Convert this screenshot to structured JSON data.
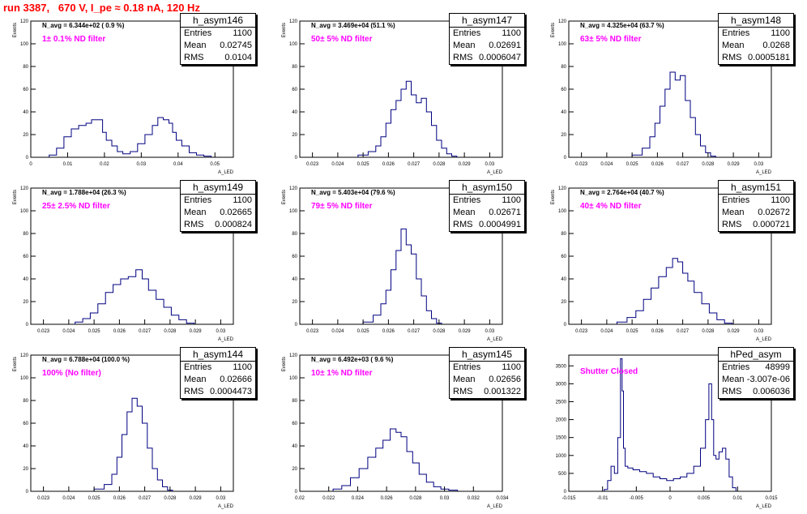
{
  "page_title": "run 3387,   670 V, I_pe ≈ 0.18 nA, 120 Hz",
  "colors": {
    "histogram": "#000080",
    "title": "#ff0000",
    "filter_label": "#ff00ff",
    "axis": "#000000"
  },
  "common": {
    "ylabel": "Events",
    "xlabel": "A_LED"
  },
  "chart_data": [
    {
      "type": "histogram",
      "hist_name": "h_asym146",
      "stats": {
        "entries": "1100",
        "mean": "0.02745",
        "rms": "0.0104"
      },
      "navg": "N_avg = 6.344e+02 ( 0.9 %)",
      "filter": "1± 0.1% ND filter",
      "xlabel": "A_LED",
      "ylabel": "Events",
      "xlim": [
        0,
        0.055
      ],
      "ylim": [
        0,
        120
      ],
      "xticks": [
        "0",
        "0.01",
        "0.02",
        "0.03",
        "0.04",
        "0.05"
      ],
      "yticks": [
        "0",
        "20",
        "40",
        "60",
        "80",
        "100",
        "120"
      ],
      "series": [
        {
          "x": [
            0.006,
            0.008,
            0.01,
            0.012,
            0.014,
            0.016,
            0.017,
            0.019,
            0.02,
            0.021,
            0.023,
            0.024,
            0.026,
            0.028,
            0.03,
            0.032,
            0.034,
            0.035,
            0.037,
            0.038,
            0.039,
            0.04,
            0.042,
            0.044,
            0.046,
            0.048
          ],
          "values": [
            2,
            8,
            18,
            25,
            28,
            30,
            33,
            33,
            22,
            15,
            10,
            5,
            3,
            5,
            12,
            20,
            28,
            35,
            33,
            30,
            22,
            15,
            10,
            4,
            2,
            1
          ]
        }
      ]
    },
    {
      "type": "histogram",
      "hist_name": "h_asym147",
      "stats": {
        "entries": "1100",
        "mean": "0.02691",
        "rms": "0.0006047"
      },
      "navg": "N_avg = 3.469e+04 (51.1 %)",
      "filter": "50± 5% ND filter",
      "xlabel": "A_LED",
      "ylabel": "Events",
      "xlim": [
        0.0225,
        0.0305
      ],
      "ylim": [
        0,
        120
      ],
      "xticks": [
        "0.023",
        "0.024",
        "0.025",
        "0.026",
        "0.027",
        "0.028",
        "0.029",
        "0.03"
      ],
      "yticks": [
        "0",
        "20",
        "40",
        "60",
        "80",
        "100",
        "120"
      ],
      "series": [
        {
          "x": [
            0.025,
            0.0254,
            0.0256,
            0.0258,
            0.026,
            0.0262,
            0.0264,
            0.0266,
            0.0268,
            0.027,
            0.0272,
            0.0274,
            0.0276,
            0.0278,
            0.028,
            0.0282,
            0.0284,
            0.0286
          ],
          "values": [
            2,
            5,
            10,
            18,
            30,
            42,
            50,
            60,
            67,
            55,
            48,
            52,
            40,
            28,
            15,
            8,
            3,
            1
          ]
        }
      ]
    },
    {
      "type": "histogram",
      "hist_name": "h_asym148",
      "stats": {
        "entries": "1100",
        "mean": "0.0268",
        "rms": "0.0005181"
      },
      "navg": "N_avg = 4.325e+04 (63.7 %)",
      "filter": "63± 5% ND filter",
      "xlabel": "A_LED",
      "ylabel": "Events",
      "xlim": [
        0.0225,
        0.0305
      ],
      "ylim": [
        0,
        120
      ],
      "xticks": [
        "0.023",
        "0.024",
        "0.025",
        "0.026",
        "0.027",
        "0.028",
        "0.029",
        "0.03"
      ],
      "yticks": [
        "0",
        "20",
        "40",
        "60",
        "80",
        "100",
        "120"
      ],
      "series": [
        {
          "x": [
            0.0252,
            0.0256,
            0.0258,
            0.026,
            0.0262,
            0.0264,
            0.0266,
            0.0268,
            0.027,
            0.0272,
            0.0274,
            0.0276,
            0.0278,
            0.028,
            0.0282
          ],
          "values": [
            2,
            8,
            18,
            30,
            45,
            60,
            75,
            68,
            72,
            50,
            35,
            20,
            10,
            4,
            1
          ]
        }
      ]
    },
    {
      "type": "histogram",
      "hist_name": "h_asym149",
      "stats": {
        "entries": "1100",
        "mean": "0.02665",
        "rms": "0.000824"
      },
      "navg": "N_avg = 1.788e+04 (26.3 %)",
      "filter": "25± 2.5% ND filter",
      "xlabel": "A_LED",
      "ylabel": "Events",
      "xlim": [
        0.0225,
        0.0305
      ],
      "ylim": [
        0,
        120
      ],
      "xticks": [
        "0.023",
        "0.024",
        "0.025",
        "0.026",
        "0.027",
        "0.028",
        "0.029",
        "0.03"
      ],
      "yticks": [
        "0",
        "20",
        "40",
        "60",
        "80",
        "100",
        "120"
      ],
      "series": [
        {
          "x": [
            0.0244,
            0.0247,
            0.025,
            0.0253,
            0.0256,
            0.0259,
            0.0262,
            0.0265,
            0.0268,
            0.027,
            0.0273,
            0.0276,
            0.0279,
            0.0282,
            0.0285,
            0.0288
          ],
          "values": [
            2,
            5,
            10,
            18,
            28,
            35,
            40,
            42,
            48,
            40,
            30,
            22,
            15,
            8,
            4,
            1
          ]
        }
      ]
    },
    {
      "type": "histogram",
      "hist_name": "h_asym150",
      "stats": {
        "entries": "1100",
        "mean": "0.02671",
        "rms": "0.0004991"
      },
      "navg": "N_avg = 5.403e+04 (79.6 %)",
      "filter": "79± 5% ND filter",
      "xlabel": "A_LED",
      "ylabel": "Events",
      "xlim": [
        0.0225,
        0.0305
      ],
      "ylim": [
        0,
        120
      ],
      "xticks": [
        "0.023",
        "0.024",
        "0.025",
        "0.026",
        "0.027",
        "0.028",
        "0.029",
        "0.03"
      ],
      "yticks": [
        "0",
        "20",
        "40",
        "60",
        "80",
        "100",
        "120"
      ],
      "series": [
        {
          "x": [
            0.0252,
            0.0256,
            0.0258,
            0.026,
            0.0262,
            0.0264,
            0.0266,
            0.0268,
            0.027,
            0.0272,
            0.0274,
            0.0276,
            0.0278,
            0.028
          ],
          "values": [
            2,
            8,
            18,
            30,
            48,
            65,
            84,
            70,
            62,
            40,
            25,
            12,
            5,
            1
          ]
        }
      ]
    },
    {
      "type": "histogram",
      "hist_name": "h_asym151",
      "stats": {
        "entries": "1100",
        "mean": "0.02672",
        "rms": "0.000721"
      },
      "navg": "N_avg = 2.764e+04 (40.7 %)",
      "filter": "40± 4% ND filter",
      "xlabel": "A_LED",
      "ylabel": "Events",
      "xlim": [
        0.0225,
        0.0305
      ],
      "ylim": [
        0,
        120
      ],
      "xticks": [
        "0.023",
        "0.024",
        "0.025",
        "0.026",
        "0.027",
        "0.028",
        "0.029",
        "0.03"
      ],
      "yticks": [
        "0",
        "20",
        "40",
        "60",
        "80",
        "100",
        "120"
      ],
      "series": [
        {
          "x": [
            0.0246,
            0.025,
            0.0253,
            0.0256,
            0.0259,
            0.0262,
            0.0265,
            0.0267,
            0.0269,
            0.0271,
            0.0273,
            0.0276,
            0.0279,
            0.0282,
            0.0285,
            0.0288
          ],
          "values": [
            2,
            6,
            12,
            22,
            32,
            42,
            50,
            58,
            55,
            45,
            38,
            28,
            18,
            10,
            4,
            1
          ]
        }
      ]
    },
    {
      "type": "histogram",
      "hist_name": "h_asym144",
      "stats": {
        "entries": "1100",
        "mean": "0.02666",
        "rms": "0.0004473"
      },
      "navg": "N_avg = 6.788e+04 (100.0 %)",
      "filter": "100% (No filter)",
      "xlabel": "A_LED",
      "ylabel": "Events",
      "xlim": [
        0.0225,
        0.0305
      ],
      "ylim": [
        0,
        120
      ],
      "xticks": [
        "0.023",
        "0.024",
        "0.025",
        "0.026",
        "0.027",
        "0.028",
        "0.029",
        "0.03"
      ],
      "yticks": [
        "0",
        "20",
        "40",
        "60",
        "80",
        "100",
        "120"
      ],
      "series": [
        {
          "x": [
            0.0252,
            0.0256,
            0.0258,
            0.026,
            0.0262,
            0.0264,
            0.0266,
            0.0268,
            0.027,
            0.0272,
            0.0274,
            0.0276,
            0.0278,
            0.028
          ],
          "values": [
            2,
            6,
            15,
            30,
            50,
            70,
            82,
            75,
            60,
            38,
            20,
            10,
            4,
            1
          ]
        }
      ]
    },
    {
      "type": "histogram",
      "hist_name": "h_asym145",
      "stats": {
        "entries": "1100",
        "mean": "0.02656",
        "rms": "0.001322"
      },
      "navg": "N_avg = 6.492e+03 ( 9.6 %)",
      "filter": "10± 1% ND filter",
      "xlabel": "A_LED",
      "ylabel": "Events",
      "xlim": [
        0.02,
        0.034
      ],
      "ylim": [
        0,
        120
      ],
      "xticks": [
        "0.02",
        "0.022",
        "0.024",
        "0.026",
        "0.028",
        "0.03",
        "0.032",
        "0.034"
      ],
      "yticks": [
        "0",
        "20",
        "40",
        "60",
        "80",
        "100",
        "120"
      ],
      "series": [
        {
          "x": [
            0.0226,
            0.0232,
            0.0238,
            0.0244,
            0.025,
            0.0255,
            0.026,
            0.0265,
            0.0268,
            0.0272,
            0.0276,
            0.028,
            0.0285,
            0.029,
            0.0295,
            0.03,
            0.0306
          ],
          "values": [
            2,
            5,
            12,
            20,
            30,
            38,
            45,
            55,
            52,
            48,
            35,
            25,
            15,
            8,
            4,
            2,
            1
          ]
        }
      ]
    },
    {
      "type": "histogram",
      "hist_name": "hPed_asym",
      "stats": {
        "entries": "48999",
        "mean": "-3.007e-06",
        "rms": "0.006036"
      },
      "filter": "Shutter Closed",
      "xlabel": "A_LED",
      "ylabel": "",
      "xlim": [
        -0.015,
        0.015
      ],
      "ylim": [
        0,
        3800
      ],
      "xticks": [
        "-0.015",
        "-0.01",
        "-0.005",
        "0",
        "0.005",
        "0.01",
        "0.015"
      ],
      "yticks": [
        "0",
        "500",
        "1000",
        "1500",
        "2000",
        "2500",
        "3000",
        "3500"
      ],
      "series": [
        {
          "x": [
            -0.0095,
            -0.009,
            -0.0085,
            -0.008,
            -0.0075,
            -0.0072,
            -0.007,
            -0.0068,
            -0.0065,
            -0.006,
            -0.005,
            -0.004,
            -0.003,
            -0.002,
            -0.001,
            0,
            0.001,
            0.002,
            0.003,
            0.004,
            0.005,
            0.0055,
            0.006,
            0.0063,
            0.0066,
            0.007,
            0.0075,
            0.008,
            0.0085,
            0.009,
            0.0095
          ],
          "values": [
            50,
            300,
            700,
            500,
            1500,
            3700,
            2800,
            1200,
            700,
            650,
            600,
            550,
            500,
            400,
            350,
            300,
            350,
            400,
            500,
            700,
            1200,
            2000,
            3000,
            2000,
            1000,
            900,
            1100,
            1200,
            900,
            400,
            100
          ]
        }
      ]
    }
  ]
}
